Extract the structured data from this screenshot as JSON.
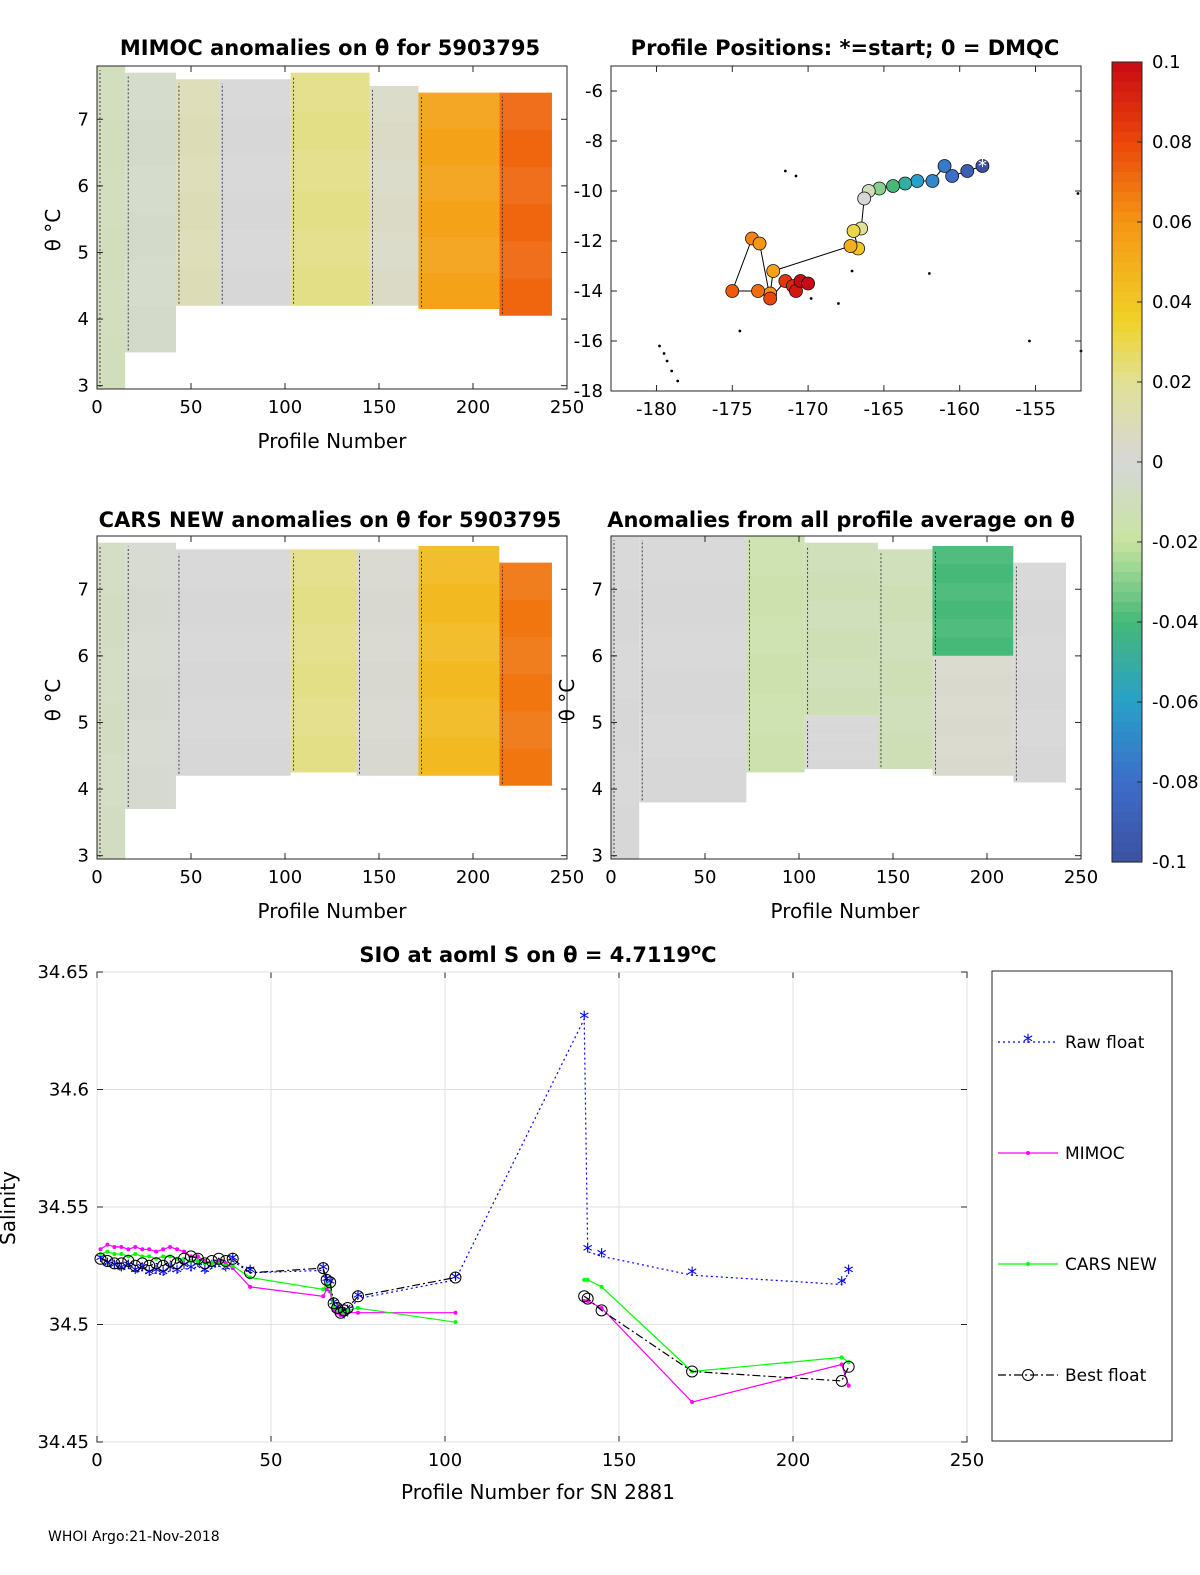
{
  "footer": "WHOI Argo:21-Nov-2018",
  "panels": {
    "mimoc": {
      "title": "MIMOC anomalies on θ  for 5903795",
      "xlabel": "Profile Number",
      "ylabel": "θ °C",
      "xticks": [
        "0",
        "50",
        "100",
        "150",
        "200",
        "250"
      ],
      "yticks": [
        "3",
        "4",
        "5",
        "6",
        "7"
      ]
    },
    "positions": {
      "title": "Profile Positions: *=start; 0 = DMQC",
      "xticks": [
        "-180",
        "-175",
        "-170",
        "-165",
        "-160",
        "-155"
      ],
      "yticks": [
        "-6",
        "-8",
        "-10",
        "-12",
        "-14",
        "-16",
        "-18"
      ]
    },
    "cars": {
      "title": "CARS NEW anomalies on θ for 5903795",
      "xlabel": "Profile Number",
      "ylabel": "θ °C",
      "xticks": [
        "0",
        "50",
        "100",
        "150",
        "200",
        "250"
      ],
      "yticks": [
        "3",
        "4",
        "5",
        "6",
        "7"
      ]
    },
    "average": {
      "title": "Anomalies from all profile average on θ",
      "xlabel": "Profile Number",
      "ylabel": "θ °C",
      "xticks": [
        "0",
        "50",
        "100",
        "150",
        "200",
        "250"
      ],
      "yticks": [
        "3",
        "4",
        "5",
        "6",
        "7"
      ]
    }
  },
  "colorbar": {
    "ticks": [
      "0.1",
      "0.08",
      "0.06",
      "0.04",
      "0.02",
      "0",
      "-0.02",
      "-0.04",
      "-0.06",
      "-0.08",
      "-0.1"
    ],
    "range": [
      -0.1,
      0.1
    ]
  },
  "chart_data": [
    {
      "type": "heatmap",
      "id": "mimoc",
      "title": "MIMOC anomalies on θ  for 5903795",
      "xlabel": "Profile Number",
      "ylabel": "θ °C",
      "xlim": [
        0,
        250
      ],
      "ylim": [
        2.95,
        7.8
      ],
      "columns": [
        {
          "x0": 0,
          "x1": 15,
          "top": 7.8,
          "bottom": 2.95,
          "anomaly": -0.01
        },
        {
          "x0": 15,
          "x1": 42,
          "top": 7.7,
          "bottom": 3.5,
          "anomaly": -0.005
        },
        {
          "x0": 42,
          "x1": 65,
          "top": 7.6,
          "bottom": 4.2,
          "anomaly": 0.01
        },
        {
          "x0": 65,
          "x1": 103,
          "top": 7.6,
          "bottom": 4.2,
          "anomaly": 0.0
        },
        {
          "x0": 103,
          "x1": 145,
          "top": 7.7,
          "bottom": 4.2,
          "anomaly": 0.022
        },
        {
          "x0": 145,
          "x1": 171,
          "top": 7.5,
          "bottom": 4.2,
          "anomaly": 0.005
        },
        {
          "x0": 171,
          "x1": 214,
          "top": 7.4,
          "bottom": 4.15,
          "anomaly": 0.055
        },
        {
          "x0": 214,
          "x1": 242,
          "top": 7.4,
          "bottom": 4.05,
          "anomaly": 0.072
        }
      ]
    },
    {
      "type": "scatter",
      "id": "positions",
      "title": "Profile Positions: *=start; 0 = DMQC",
      "xlim": [
        -183,
        -152
      ],
      "ylim": [
        -18,
        -5
      ],
      "track": [
        {
          "lon": -158.5,
          "lat": -9.0,
          "anomaly": -0.1
        },
        {
          "lon": -159.5,
          "lat": -9.2,
          "anomaly": -0.09
        },
        {
          "lon": -160.5,
          "lat": -9.4,
          "anomaly": -0.08
        },
        {
          "lon": -161.0,
          "lat": -9.0,
          "anomaly": -0.075
        },
        {
          "lon": -161.8,
          "lat": -9.6,
          "anomaly": -0.07
        },
        {
          "lon": -162.8,
          "lat": -9.6,
          "anomaly": -0.06
        },
        {
          "lon": -163.6,
          "lat": -9.7,
          "anomaly": -0.05
        },
        {
          "lon": -164.4,
          "lat": -9.8,
          "anomaly": -0.04
        },
        {
          "lon": -165.3,
          "lat": -9.9,
          "anomaly": -0.03
        },
        {
          "lon": -166.0,
          "lat": -10.0,
          "anomaly": -0.01
        },
        {
          "lon": -166.3,
          "lat": -10.3,
          "anomaly": 0.0
        },
        {
          "lon": -166.5,
          "lat": -11.5,
          "anomaly": 0.02
        },
        {
          "lon": -167.0,
          "lat": -11.6,
          "anomaly": 0.03
        },
        {
          "lon": -166.7,
          "lat": -12.3,
          "anomaly": 0.04
        },
        {
          "lon": -167.2,
          "lat": -12.2,
          "anomaly": 0.05
        },
        {
          "lon": -172.3,
          "lat": -13.2,
          "anomaly": 0.055
        },
        {
          "lon": -172.5,
          "lat": -14.1,
          "anomaly": 0.06
        },
        {
          "lon": -173.3,
          "lat": -14.0,
          "anomaly": 0.07
        },
        {
          "lon": -175.0,
          "lat": -14.0,
          "anomaly": 0.075
        },
        {
          "lon": -173.7,
          "lat": -11.9,
          "anomaly": 0.065
        },
        {
          "lon": -173.2,
          "lat": -12.1,
          "anomaly": 0.06
        },
        {
          "lon": -172.5,
          "lat": -14.3,
          "anomaly": 0.08
        },
        {
          "lon": -171.5,
          "lat": -13.6,
          "anomaly": 0.085
        },
        {
          "lon": -171.0,
          "lat": -13.8,
          "anomaly": 0.09
        },
        {
          "lon": -170.8,
          "lat": -14.0,
          "anomaly": 0.095
        },
        {
          "lon": -170.5,
          "lat": -13.6,
          "anomaly": 0.1
        },
        {
          "lon": -170.0,
          "lat": -13.7,
          "anomaly": 0.1
        }
      ]
    },
    {
      "type": "heatmap",
      "id": "cars",
      "title": "CARS NEW anomalies on θ for 5903795",
      "xlabel": "Profile Number",
      "ylabel": "θ °C",
      "xlim": [
        0,
        250
      ],
      "ylim": [
        2.95,
        7.8
      ],
      "columns": [
        {
          "x0": 0,
          "x1": 15,
          "top": 7.7,
          "bottom": 2.95,
          "anomaly": -0.008
        },
        {
          "x0": 15,
          "x1": 42,
          "top": 7.7,
          "bottom": 3.7,
          "anomaly": -0.003
        },
        {
          "x0": 42,
          "x1": 103,
          "top": 7.6,
          "bottom": 4.2,
          "anomaly": 0.0
        },
        {
          "x0": 103,
          "x1": 138,
          "top": 7.6,
          "bottom": 4.25,
          "anomaly": 0.022
        },
        {
          "x0": 138,
          "x1": 171,
          "top": 7.6,
          "bottom": 4.2,
          "anomaly": 0.002
        },
        {
          "x0": 171,
          "x1": 214,
          "top": 7.65,
          "bottom": 4.2,
          "anomaly": 0.045
        },
        {
          "x0": 214,
          "x1": 242,
          "top": 7.4,
          "bottom": 4.05,
          "anomaly": 0.068
        }
      ]
    },
    {
      "type": "heatmap",
      "id": "average",
      "title": "Anomalies from all profile average on θ",
      "xlabel": "Profile Number",
      "ylabel": "θ °C",
      "xlim": [
        0,
        250
      ],
      "ylim": [
        2.95,
        7.8
      ],
      "columns": [
        {
          "x0": 0,
          "x1": 15,
          "top": 7.8,
          "bottom": 2.95,
          "anomaly": 0.0
        },
        {
          "x0": 15,
          "x1": 72,
          "top": 7.8,
          "bottom": 3.8,
          "anomaly": 0.0
        },
        {
          "x0": 72,
          "x1": 103,
          "top": 7.8,
          "bottom": 4.25,
          "anomaly": -0.015
        },
        {
          "x0": 103,
          "x1": 142,
          "top": 7.7,
          "bottom": 5.1,
          "anomaly": -0.012
        },
        {
          "x0": 103,
          "x1": 142,
          "top": 5.1,
          "bottom": 4.3,
          "anomaly": 0.0
        },
        {
          "x0": 142,
          "x1": 171,
          "top": 7.6,
          "bottom": 4.3,
          "anomaly": -0.012
        },
        {
          "x0": 171,
          "x1": 214,
          "top": 7.65,
          "bottom": 6.0,
          "anomaly": -0.04
        },
        {
          "x0": 171,
          "x1": 214,
          "top": 6.0,
          "bottom": 4.2,
          "anomaly": 0.003
        },
        {
          "x0": 214,
          "x1": 242,
          "top": 7.4,
          "bottom": 4.1,
          "anomaly": 0.0
        }
      ]
    },
    {
      "type": "line",
      "id": "salinity",
      "title": "SIO at aoml S on θ = 4.7119°C",
      "title_main": "SIO at aoml S on θ = 4.7119",
      "title_sup": "o",
      "title_end": "C",
      "xlabel": "Profile Number for SN 2881",
      "ylabel": "Salinity",
      "xlim": [
        0,
        250
      ],
      "ylim": [
        34.45,
        34.65
      ],
      "xticks": [
        "0",
        "50",
        "100",
        "150",
        "200",
        "250"
      ],
      "yticks": [
        "34.45",
        "34.5",
        "34.55",
        "34.6",
        "34.65"
      ],
      "series": [
        {
          "name": "Raw float",
          "color": "#0000ff",
          "x": [
            1,
            3,
            5,
            7,
            9,
            11,
            13,
            15,
            17,
            19,
            21,
            23,
            25,
            27,
            29,
            31,
            33,
            35,
            37,
            39,
            44,
            65,
            66,
            67,
            68,
            69,
            70,
            71,
            72,
            75,
            103,
            140,
            141,
            145,
            171,
            214,
            216
          ],
          "y": [
            34.527,
            34.525,
            34.524,
            34.523,
            34.524,
            34.522,
            34.523,
            34.521,
            34.522,
            34.521,
            34.523,
            34.522,
            34.524,
            34.523,
            34.525,
            34.522,
            34.524,
            34.525,
            34.523,
            34.527,
            34.522,
            34.523,
            34.518,
            34.517,
            34.508,
            34.506,
            34.504,
            34.503,
            34.505,
            34.511,
            34.519,
            34.63,
            34.531,
            34.529,
            34.521,
            34.517,
            34.522
          ]
        },
        {
          "name": "MIMOC",
          "color": "#ff00ff",
          "x": [
            1,
            3,
            5,
            7,
            9,
            11,
            13,
            15,
            17,
            19,
            21,
            23,
            25,
            27,
            29,
            31,
            33,
            35,
            37,
            39,
            44,
            65,
            66,
            67,
            68,
            69,
            70,
            71,
            72,
            75,
            103,
            140,
            141,
            145,
            171,
            214,
            216
          ],
          "y": [
            34.532,
            34.534,
            34.533,
            34.533,
            34.532,
            34.533,
            34.532,
            34.532,
            34.531,
            34.532,
            34.533,
            34.532,
            34.531,
            34.529,
            34.529,
            34.527,
            34.526,
            34.527,
            34.526,
            34.524,
            34.516,
            34.512,
            34.515,
            34.514,
            34.506,
            34.505,
            34.504,
            34.504,
            34.505,
            34.505,
            34.505,
            34.51,
            34.51,
            34.507,
            34.467,
            34.483,
            34.474
          ]
        },
        {
          "name": "CARS NEW",
          "color": "#00ff00",
          "x": [
            1,
            3,
            5,
            7,
            9,
            11,
            13,
            15,
            17,
            19,
            21,
            23,
            25,
            27,
            29,
            31,
            33,
            35,
            37,
            39,
            44,
            65,
            66,
            67,
            68,
            69,
            70,
            71,
            72,
            75,
            103,
            140,
            141,
            145,
            171,
            214,
            216
          ],
          "y": [
            34.53,
            34.531,
            34.53,
            34.53,
            34.529,
            34.53,
            34.529,
            34.529,
            34.528,
            34.529,
            34.529,
            34.528,
            34.528,
            34.527,
            34.527,
            34.526,
            34.526,
            34.526,
            34.525,
            34.525,
            34.52,
            34.515,
            34.517,
            34.516,
            34.507,
            34.506,
            34.506,
            34.505,
            34.506,
            34.507,
            34.501,
            34.519,
            34.519,
            34.516,
            34.48,
            34.486,
            34.484
          ]
        },
        {
          "name": "Best float",
          "color": "#000000",
          "x": [
            1,
            3,
            5,
            7,
            9,
            11,
            13,
            15,
            17,
            19,
            21,
            23,
            25,
            27,
            29,
            31,
            33,
            35,
            37,
            39,
            44,
            65,
            66,
            67,
            68,
            69,
            70,
            71,
            72,
            75,
            103,
            140,
            141,
            145,
            171,
            214,
            216
          ],
          "y": [
            34.528,
            34.527,
            34.526,
            34.526,
            34.527,
            34.525,
            34.526,
            34.525,
            34.526,
            34.525,
            34.527,
            34.526,
            34.528,
            34.529,
            34.528,
            34.526,
            34.527,
            34.528,
            34.527,
            34.528,
            34.522,
            34.524,
            34.519,
            34.518,
            34.509,
            34.507,
            34.505,
            34.506,
            34.507,
            34.512,
            34.52,
            34.512,
            34.511,
            34.506,
            34.48,
            34.476,
            34.482
          ]
        }
      ]
    }
  ]
}
